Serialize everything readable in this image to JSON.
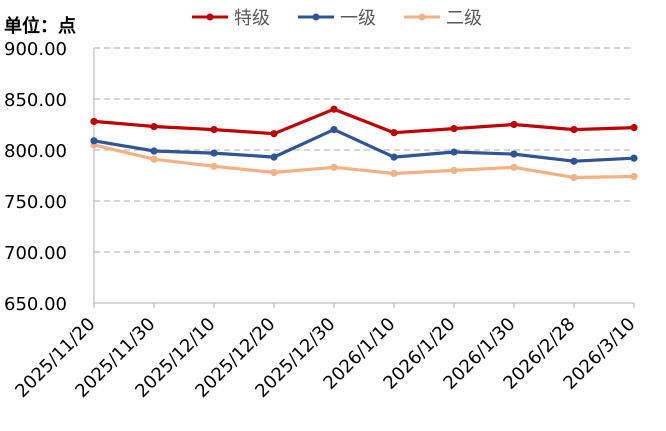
{
  "unit_label": "单位：点",
  "chart_data": {
    "type": "line",
    "title": "",
    "xlabel": "",
    "ylabel": "单位：点",
    "ylim": [
      650,
      900
    ],
    "ytick_step": 50,
    "ytick_decimals": 2,
    "grid": "horizontal-dashed",
    "legend_position": "top",
    "categories": [
      "2025/11/20",
      "2025/11/30",
      "2025/12/10",
      "2025/12/20",
      "2025/12/30",
      "2026/1/10",
      "2026/1/20",
      "2026/1/30",
      "2026/2/28",
      "2026/3/10"
    ],
    "series": [
      {
        "name": "特级",
        "color": "#C00000",
        "values": [
          828,
          823,
          820,
          816,
          840,
          817,
          821,
          825,
          820,
          822
        ]
      },
      {
        "name": "一级",
        "color": "#2F5597",
        "values": [
          809,
          799,
          797,
          793,
          820,
          793,
          798,
          796,
          789,
          792
        ]
      },
      {
        "name": "二级",
        "color": "#F4B183",
        "values": [
          805,
          791,
          784,
          778,
          783,
          777,
          780,
          783,
          773,
          774
        ]
      }
    ]
  }
}
